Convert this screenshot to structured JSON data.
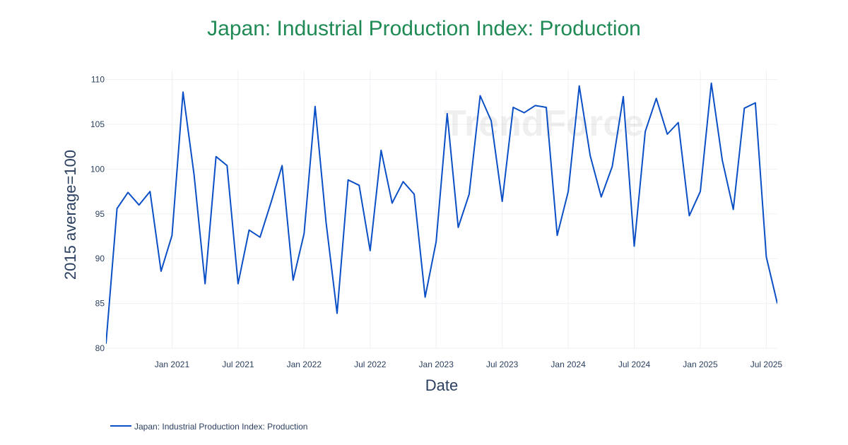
{
  "chart_data": {
    "type": "line",
    "title": "Japan: Industrial Production Index: Production",
    "xlabel": "Date",
    "ylabel": "2015 average=100",
    "xlim": [
      "2020-07",
      "2025-08"
    ],
    "ylim": [
      80,
      111
    ],
    "x_ticks": [
      "Jan 2021",
      "Jul 2021",
      "Jan 2022",
      "Jul 2022",
      "Jan 2023",
      "Jul 2023",
      "Jan 2024",
      "Jul 2024",
      "Jan 2025",
      "Jul 2025"
    ],
    "y_ticks": [
      80,
      85,
      90,
      95,
      100,
      105,
      110
    ],
    "grid": true,
    "legend_position": "bottom-left",
    "watermark": "TrendForce",
    "colors": {
      "title": "#1f8a55",
      "line": "#0a4fc6",
      "grid": "#eef0f4"
    },
    "series": [
      {
        "name": "Japan: Industrial Production Index: Production",
        "x": [
          "2020-07",
          "2020-08",
          "2020-09",
          "2020-10",
          "2020-11",
          "2020-12",
          "2021-01",
          "2021-02",
          "2021-03",
          "2021-04",
          "2021-05",
          "2021-06",
          "2021-07",
          "2021-08",
          "2021-09",
          "2021-10",
          "2021-11",
          "2021-12",
          "2022-01",
          "2022-02",
          "2022-03",
          "2022-04",
          "2022-05",
          "2022-06",
          "2022-07",
          "2022-08",
          "2022-09",
          "2022-10",
          "2022-11",
          "2022-12",
          "2023-01",
          "2023-02",
          "2023-03",
          "2023-04",
          "2023-05",
          "2023-06",
          "2023-07",
          "2023-08",
          "2023-09",
          "2023-10",
          "2023-11",
          "2023-12",
          "2024-01",
          "2024-02",
          "2024-03",
          "2024-04",
          "2024-05",
          "2024-06",
          "2024-07",
          "2024-08",
          "2024-09",
          "2024-10",
          "2024-11",
          "2024-12",
          "2025-01",
          "2025-02",
          "2025-03",
          "2025-04",
          "2025-05",
          "2025-06",
          "2025-07",
          "2025-08"
        ],
        "values": [
          80.5,
          95.6,
          97.4,
          96.0,
          97.5,
          88.6,
          92.6,
          108.6,
          99.4,
          87.2,
          101.4,
          100.4,
          87.2,
          93.2,
          92.4,
          96.3,
          100.4,
          87.6,
          92.8,
          107.0,
          94.0,
          83.9,
          98.8,
          98.2,
          90.9,
          102.1,
          96.2,
          98.6,
          97.2,
          85.7,
          91.9,
          106.2,
          93.5,
          97.2,
          108.2,
          105.4,
          96.4,
          106.9,
          106.3,
          107.1,
          106.9,
          92.6,
          97.5,
          109.3,
          101.5,
          96.9,
          100.3,
          108.1,
          91.4,
          104.2,
          107.9,
          103.9,
          105.2,
          94.8,
          97.5,
          109.6,
          101.0,
          95.5,
          106.8,
          107.4,
          90.2,
          85.0
        ]
      }
    ]
  }
}
